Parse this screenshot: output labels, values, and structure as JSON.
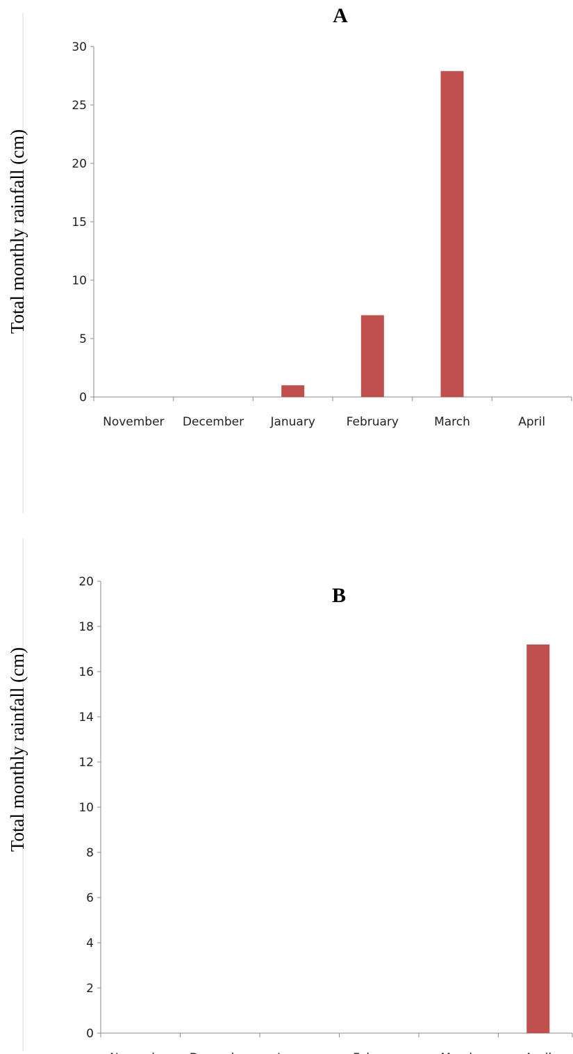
{
  "bar_color": "#c0504d",
  "chart_data": [
    {
      "type": "bar",
      "title": "A",
      "xlabel": "",
      "ylabel": "Total monthly rainfall (cm)",
      "categories": [
        "November",
        "December",
        "January",
        "February",
        "March",
        "April"
      ],
      "values": [
        0,
        0,
        1,
        7,
        27.9,
        0
      ],
      "ylim": [
        0,
        30
      ],
      "yticks": [
        "0",
        "5",
        "10",
        "15",
        "20",
        "25",
        "30"
      ],
      "grid": false,
      "legend": "none"
    },
    {
      "type": "bar",
      "title": "B",
      "xlabel": "",
      "ylabel": "Total monthly rainfall (cm)",
      "categories": [
        "November",
        "December",
        "January",
        "February",
        "March",
        "April"
      ],
      "values": [
        0,
        0,
        0,
        0,
        0,
        17.2
      ],
      "ylim": [
        0,
        20
      ],
      "yticks": [
        "0",
        "2",
        "4",
        "6",
        "8",
        "10",
        "12",
        "14",
        "16",
        "18",
        "20"
      ],
      "grid": false,
      "legend": "none"
    }
  ]
}
